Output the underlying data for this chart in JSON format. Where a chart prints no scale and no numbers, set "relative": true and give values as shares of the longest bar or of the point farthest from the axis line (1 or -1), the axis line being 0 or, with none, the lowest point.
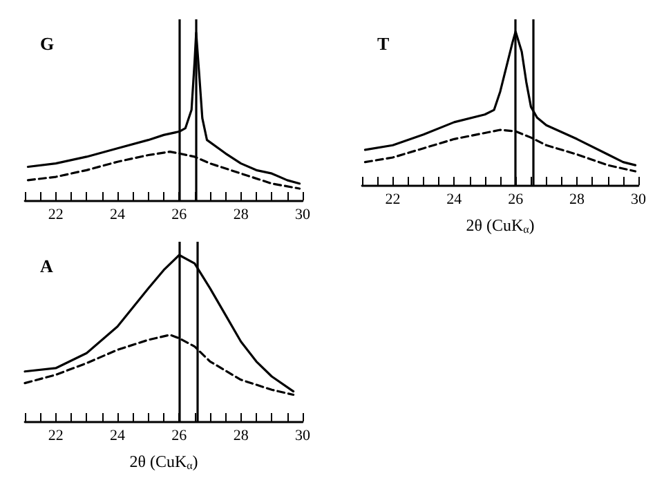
{
  "chart_data": [
    {
      "type": "line",
      "title": "G",
      "relative": true,
      "xlim": [
        21,
        30
      ],
      "xticks": [
        {
          "value": 21,
          "label": null
        },
        {
          "value": 21.5,
          "label": null
        },
        22,
        {
          "value": 22.5,
          "label": null
        },
        {
          "value": 23,
          "label": null
        },
        {
          "value": 23.5,
          "label": null
        },
        24,
        {
          "value": 24.5,
          "label": null
        },
        {
          "value": 25,
          "label": null
        },
        {
          "value": 25.5,
          "label": null
        },
        26,
        {
          "value": 26.5,
          "label": null
        },
        {
          "value": 27,
          "label": null
        },
        {
          "value": 27.5,
          "label": null
        },
        28,
        {
          "value": 28.5,
          "label": null
        },
        {
          "value": 29,
          "label": null
        },
        {
          "value": 29.5,
          "label": null
        },
        30
      ],
      "grid": false,
      "marker": "none",
      "series": [
        {
          "color": "#000000",
          "line_style": "solid",
          "x": [
            21.1,
            22,
            23,
            24,
            25,
            25.5,
            26,
            26.2,
            26.4,
            26.5,
            26.55,
            26.65,
            26.75,
            26.9,
            27.5,
            28,
            28.5,
            29,
            29.5,
            29.9
          ],
          "values": [
            0.2,
            0.22,
            0.26,
            0.31,
            0.36,
            0.39,
            0.41,
            0.43,
            0.54,
            0.83,
            1,
            0.75,
            0.49,
            0.36,
            0.28,
            0.22,
            0.18,
            0.16,
            0.12,
            0.1
          ]
        },
        {
          "color": "#000000",
          "line_style": "dashed",
          "x": [
            21.1,
            22,
            23,
            24,
            25,
            25.7,
            26,
            26.5,
            27,
            28,
            29,
            29.9
          ],
          "values": [
            0.12,
            0.14,
            0.18,
            0.23,
            0.27,
            0.29,
            0.28,
            0.26,
            0.22,
            0.16,
            0.1,
            0.07
          ]
        }
      ],
      "ref_lines": [
        {
          "axis": "x",
          "value": 26.0,
          "color": "#000000"
        },
        {
          "axis": "x",
          "value": 26.55,
          "color": "#000000"
        }
      ]
    },
    {
      "type": "line",
      "title": "T",
      "xlabel": "2θ (CuK$_{α}$)",
      "relative": true,
      "xlim": [
        21,
        30
      ],
      "xticks": [
        {
          "value": 21,
          "label": null
        },
        {
          "value": 21.5,
          "label": null
        },
        22,
        {
          "value": 22.5,
          "label": null
        },
        {
          "value": 23,
          "label": null
        },
        {
          "value": 23.5,
          "label": null
        },
        24,
        {
          "value": 24.5,
          "label": null
        },
        {
          "value": 25,
          "label": null
        },
        {
          "value": 25.5,
          "label": null
        },
        26,
        {
          "value": 26.5,
          "label": null
        },
        {
          "value": 27,
          "label": null
        },
        {
          "value": 27.5,
          "label": null
        },
        28,
        {
          "value": 28.5,
          "label": null
        },
        {
          "value": 29,
          "label": null
        },
        {
          "value": 29.5,
          "label": null
        },
        30
      ],
      "grid": false,
      "marker": "none",
      "series": [
        {
          "color": "#000000",
          "line_style": "solid",
          "x": [
            21.1,
            22,
            23,
            24,
            25,
            25.3,
            25.5,
            25.7,
            25.9,
            26,
            26.2,
            26.35,
            26.5,
            26.7,
            27,
            28,
            29,
            29.5,
            29.9
          ],
          "values": [
            0.23,
            0.26,
            0.33,
            0.41,
            0.46,
            0.49,
            0.61,
            0.77,
            0.93,
            1,
            0.87,
            0.67,
            0.51,
            0.44,
            0.39,
            0.3,
            0.2,
            0.15,
            0.13
          ]
        },
        {
          "color": "#000000",
          "line_style": "dashed",
          "x": [
            21.1,
            22,
            23,
            24,
            25,
            25.5,
            26,
            26.5,
            27,
            28,
            29,
            29.9
          ],
          "values": [
            0.15,
            0.18,
            0.24,
            0.3,
            0.34,
            0.36,
            0.35,
            0.31,
            0.26,
            0.2,
            0.13,
            0.09
          ]
        }
      ],
      "ref_lines": [
        {
          "axis": "x",
          "value": 26.0,
          "color": "#000000"
        },
        {
          "axis": "x",
          "value": 26.55,
          "color": "#000000"
        }
      ]
    },
    {
      "type": "line",
      "title": "A",
      "xlabel": "2θ (CuK$_{α}$)",
      "relative": true,
      "xlim": [
        21,
        30
      ],
      "xticks": [
        {
          "value": 21,
          "label": null
        },
        {
          "value": 21.5,
          "label": null
        },
        22,
        {
          "value": 22.5,
          "label": null
        },
        {
          "value": 23,
          "label": null
        },
        {
          "value": 23.5,
          "label": null
        },
        24,
        {
          "value": 24.5,
          "label": null
        },
        {
          "value": 25,
          "label": null
        },
        {
          "value": 25.5,
          "label": null
        },
        26,
        {
          "value": 26.5,
          "label": null
        },
        {
          "value": 27,
          "label": null
        },
        {
          "value": 27.5,
          "label": null
        },
        28,
        {
          "value": 28.5,
          "label": null
        },
        {
          "value": 29,
          "label": null
        },
        {
          "value": 29.5,
          "label": null
        },
        30
      ],
      "grid": false,
      "marker": "none",
      "series": [
        {
          "color": "#000000",
          "line_style": "solid",
          "x": [
            21,
            22,
            23,
            24,
            25,
            25.5,
            26,
            26.5,
            27,
            27.5,
            28,
            28.5,
            29,
            29.7
          ],
          "values": [
            0.3,
            0.32,
            0.41,
            0.57,
            0.8,
            0.91,
            1,
            0.95,
            0.8,
            0.64,
            0.48,
            0.36,
            0.27,
            0.18
          ]
        },
        {
          "color": "#000000",
          "line_style": "dashed",
          "x": [
            21,
            22,
            23,
            24,
            25,
            25.7,
            26,
            26.5,
            27,
            28,
            29,
            29.7
          ],
          "values": [
            0.23,
            0.28,
            0.35,
            0.43,
            0.49,
            0.52,
            0.5,
            0.45,
            0.36,
            0.25,
            0.19,
            0.16
          ]
        }
      ],
      "ref_lines": [
        {
          "axis": "x",
          "value": 26.0,
          "color": "#000000"
        },
        {
          "axis": "x",
          "value": 26.6,
          "color": "#000000"
        }
      ]
    }
  ]
}
